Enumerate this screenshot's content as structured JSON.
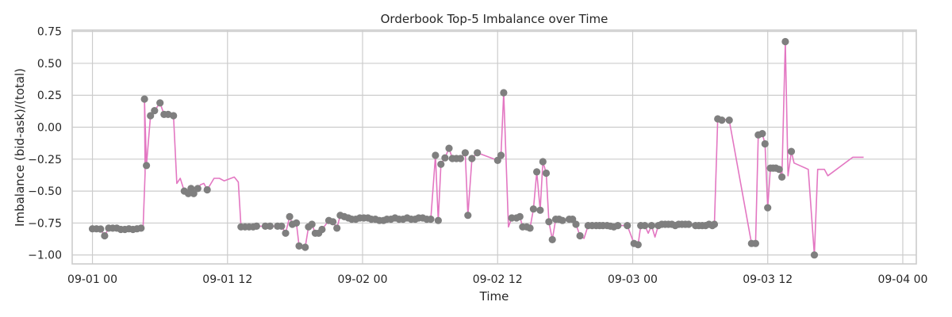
{
  "chart_data": {
    "type": "line",
    "title": "Orderbook Top-5 Imbalance over Time",
    "xlabel": "Time",
    "ylabel": "Imbalance (bid-ask)/(total)",
    "x_unit": "hours since 09-01 00",
    "xlim": [
      -3,
      122
    ],
    "ylim": [
      -1.07,
      0.76
    ],
    "x_ticks": [
      {
        "value": 0,
        "label": "09-01 00"
      },
      {
        "value": 20,
        "label": "09-01 12"
      },
      {
        "value": 40,
        "label": "09-02 00"
      },
      {
        "value": 60,
        "label": "09-02 12"
      },
      {
        "value": 80,
        "label": "09-03 00"
      },
      {
        "value": 100,
        "label": "09-03 12"
      },
      {
        "value": 120,
        "label": "09-04 00"
      }
    ],
    "y_ticks": [
      {
        "value": 0.75,
        "label": "0.75"
      },
      {
        "value": 0.5,
        "label": "0.50"
      },
      {
        "value": 0.25,
        "label": "0.25"
      },
      {
        "value": 0.0,
        "label": "0.00"
      },
      {
        "value": -0.25,
        "label": "−0.25"
      },
      {
        "value": -0.5,
        "label": "−0.50"
      },
      {
        "value": -0.75,
        "label": "−0.75"
      },
      {
        "value": -1.0,
        "label": "−1.00"
      }
    ],
    "grid": true,
    "colors": {
      "line": "#e377c2",
      "marker": "#7f7f7f",
      "grid": "#cccccc",
      "text": "#262626"
    },
    "series": [
      {
        "name": "imbalance",
        "points": [
          [
            0.0,
            -0.795,
            1
          ],
          [
            0.6,
            -0.795,
            1
          ],
          [
            1.2,
            -0.797,
            1
          ],
          [
            1.8,
            -0.85,
            1
          ],
          [
            2.4,
            -0.79,
            1
          ],
          [
            3.0,
            -0.79,
            1
          ],
          [
            3.6,
            -0.79,
            1
          ],
          [
            4.2,
            -0.8,
            1
          ],
          [
            4.8,
            -0.8,
            1
          ],
          [
            5.4,
            -0.795,
            1
          ],
          [
            6.0,
            -0.8,
            1
          ],
          [
            6.6,
            -0.795,
            1
          ],
          [
            7.2,
            -0.79,
            1
          ],
          [
            7.5,
            -0.78,
            0
          ],
          [
            7.8,
            -0.36,
            0
          ],
          [
            7.7,
            0.22,
            1
          ],
          [
            8.0,
            -0.3,
            1
          ],
          [
            8.6,
            0.09,
            1
          ],
          [
            9.2,
            0.13,
            1
          ],
          [
            10.0,
            0.19,
            1
          ],
          [
            10.6,
            0.1,
            1
          ],
          [
            11.2,
            0.1,
            1
          ],
          [
            12.0,
            0.09,
            1
          ],
          [
            12.5,
            -0.44,
            0
          ],
          [
            13.0,
            -0.4,
            0
          ],
          [
            13.6,
            -0.5,
            1
          ],
          [
            14.2,
            -0.52,
            1
          ],
          [
            14.6,
            -0.48,
            1
          ],
          [
            15.0,
            -0.52,
            1
          ],
          [
            15.6,
            -0.48,
            1
          ],
          [
            16.0,
            -0.45,
            0
          ],
          [
            16.5,
            -0.44,
            0
          ],
          [
            17.0,
            -0.49,
            1
          ],
          [
            18.0,
            -0.4,
            0
          ],
          [
            18.8,
            -0.4,
            0
          ],
          [
            19.5,
            -0.42,
            0
          ],
          [
            21.0,
            -0.39,
            0
          ],
          [
            21.6,
            -0.43,
            0
          ],
          [
            22.0,
            -0.78,
            1
          ],
          [
            22.6,
            -0.78,
            1
          ],
          [
            23.2,
            -0.78,
            1
          ],
          [
            23.8,
            -0.78,
            1
          ],
          [
            24.3,
            -0.775,
            1
          ],
          [
            25.0,
            -0.775,
            0
          ],
          [
            25.6,
            -0.775,
            1
          ],
          [
            26.3,
            -0.775,
            1
          ],
          [
            26.9,
            -0.775,
            0
          ],
          [
            27.4,
            -0.775,
            1
          ],
          [
            28.0,
            -0.775,
            1
          ],
          [
            28.6,
            -0.83,
            1
          ],
          [
            29.2,
            -0.7,
            1
          ],
          [
            29.6,
            -0.76,
            1
          ],
          [
            30.2,
            -0.75,
            1
          ],
          [
            30.6,
            -0.93,
            1
          ],
          [
            31.5,
            -0.94,
            1
          ],
          [
            32.0,
            -0.78,
            1
          ],
          [
            32.5,
            -0.76,
            1
          ],
          [
            33.0,
            -0.83,
            1
          ],
          [
            33.5,
            -0.83,
            1
          ],
          [
            34.0,
            -0.8,
            1
          ],
          [
            35.0,
            -0.73,
            1
          ],
          [
            35.6,
            -0.74,
            1
          ],
          [
            36.2,
            -0.79,
            1
          ],
          [
            36.7,
            -0.69,
            1
          ],
          [
            37.3,
            -0.7,
            1
          ],
          [
            37.9,
            -0.71,
            1
          ],
          [
            38.4,
            -0.72,
            1
          ],
          [
            39.0,
            -0.72,
            1
          ],
          [
            39.6,
            -0.71,
            1
          ],
          [
            40.2,
            -0.71,
            1
          ],
          [
            40.8,
            -0.71,
            1
          ],
          [
            41.3,
            -0.72,
            1
          ],
          [
            41.9,
            -0.72,
            1
          ],
          [
            42.5,
            -0.73,
            1
          ],
          [
            43.1,
            -0.73,
            1
          ],
          [
            43.6,
            -0.72,
            1
          ],
          [
            44.2,
            -0.72,
            1
          ],
          [
            44.8,
            -0.71,
            1
          ],
          [
            45.4,
            -0.72,
            1
          ],
          [
            46.0,
            -0.72,
            1
          ],
          [
            46.6,
            -0.71,
            1
          ],
          [
            47.2,
            -0.72,
            1
          ],
          [
            47.8,
            -0.72,
            1
          ],
          [
            48.3,
            -0.71,
            1
          ],
          [
            48.9,
            -0.71,
            1
          ],
          [
            49.5,
            -0.72,
            1
          ],
          [
            50.1,
            -0.72,
            1
          ],
          [
            50.8,
            -0.22,
            1
          ],
          [
            51.2,
            -0.73,
            1
          ],
          [
            51.6,
            -0.29,
            1
          ],
          [
            52.2,
            -0.24,
            1
          ],
          [
            52.8,
            -0.165,
            1
          ],
          [
            53.3,
            -0.245,
            1
          ],
          [
            53.9,
            -0.245,
            1
          ],
          [
            54.5,
            -0.245,
            1
          ],
          [
            55.2,
            -0.2,
            1
          ],
          [
            55.6,
            -0.69,
            1
          ],
          [
            56.2,
            -0.245,
            1
          ],
          [
            57.0,
            -0.2,
            1
          ],
          [
            60.0,
            -0.26,
            1
          ],
          [
            60.5,
            -0.22,
            1
          ],
          [
            60.9,
            0.27,
            1
          ],
          [
            61.6,
            -0.78,
            0
          ],
          [
            62.1,
            -0.71,
            1
          ],
          [
            62.8,
            -0.71,
            1
          ],
          [
            63.3,
            -0.7,
            1
          ],
          [
            63.7,
            -0.78,
            1
          ],
          [
            64.3,
            -0.78,
            1
          ],
          [
            64.8,
            -0.79,
            1
          ],
          [
            65.3,
            -0.64,
            1
          ],
          [
            65.8,
            -0.35,
            1
          ],
          [
            66.3,
            -0.65,
            1
          ],
          [
            66.7,
            -0.27,
            1
          ],
          [
            67.2,
            -0.36,
            1
          ],
          [
            67.6,
            -0.74,
            1
          ],
          [
            68.1,
            -0.88,
            1
          ],
          [
            68.6,
            -0.72,
            1
          ],
          [
            69.1,
            -0.72,
            1
          ],
          [
            69.6,
            -0.73,
            1
          ],
          [
            70.2,
            -0.73,
            0
          ],
          [
            70.6,
            -0.72,
            1
          ],
          [
            71.1,
            -0.72,
            1
          ],
          [
            71.6,
            -0.76,
            1
          ],
          [
            72.2,
            -0.85,
            1
          ],
          [
            72.8,
            -0.87,
            0
          ],
          [
            73.4,
            -0.77,
            1
          ],
          [
            74.0,
            -0.77,
            1
          ],
          [
            74.6,
            -0.77,
            1
          ],
          [
            75.1,
            -0.77,
            1
          ],
          [
            75.6,
            -0.77,
            1
          ],
          [
            76.2,
            -0.77,
            1
          ],
          [
            76.7,
            -0.775,
            1
          ],
          [
            77.2,
            -0.78,
            1
          ],
          [
            77.8,
            -0.77,
            1
          ],
          [
            78.3,
            -0.77,
            0
          ],
          [
            79.2,
            -0.77,
            1
          ],
          [
            80.2,
            -0.91,
            1
          ],
          [
            80.8,
            -0.92,
            1
          ],
          [
            81.2,
            -0.77,
            1
          ],
          [
            81.8,
            -0.77,
            1
          ],
          [
            82.3,
            -0.83,
            0
          ],
          [
            82.8,
            -0.77,
            1
          ],
          [
            83.3,
            -0.86,
            0
          ],
          [
            83.8,
            -0.77,
            1
          ],
          [
            84.3,
            -0.76,
            1
          ],
          [
            84.8,
            -0.76,
            1
          ],
          [
            85.3,
            -0.76,
            1
          ],
          [
            85.8,
            -0.76,
            1
          ],
          [
            86.3,
            -0.77,
            1
          ],
          [
            86.8,
            -0.76,
            1
          ],
          [
            87.3,
            -0.76,
            1
          ],
          [
            87.8,
            -0.76,
            1
          ],
          [
            88.3,
            -0.76,
            1
          ],
          [
            88.8,
            -0.76,
            0
          ],
          [
            89.3,
            -0.77,
            1
          ],
          [
            89.8,
            -0.77,
            1
          ],
          [
            90.3,
            -0.77,
            1
          ],
          [
            90.8,
            -0.77,
            1
          ],
          [
            91.3,
            -0.76,
            1
          ],
          [
            91.8,
            -0.77,
            1
          ],
          [
            92.1,
            -0.76,
            1
          ],
          [
            92.6,
            0.065,
            1
          ],
          [
            93.2,
            0.055,
            1
          ],
          [
            93.8,
            0.06,
            0
          ],
          [
            94.3,
            0.055,
            1
          ],
          [
            97.6,
            -0.91,
            1
          ],
          [
            98.2,
            -0.91,
            1
          ],
          [
            98.6,
            -0.06,
            1
          ],
          [
            99.2,
            -0.05,
            1
          ],
          [
            99.6,
            -0.13,
            1
          ],
          [
            100.0,
            -0.63,
            1
          ],
          [
            100.4,
            -0.32,
            1
          ],
          [
            100.8,
            -0.32,
            1
          ],
          [
            101.2,
            -0.32,
            1
          ],
          [
            101.7,
            -0.33,
            1
          ],
          [
            102.1,
            -0.39,
            1
          ],
          [
            102.6,
            0.67,
            1
          ],
          [
            103.0,
            -0.38,
            0
          ],
          [
            103.5,
            -0.19,
            1
          ],
          [
            103.9,
            -0.28,
            0
          ],
          [
            106.0,
            -0.33,
            0
          ],
          [
            106.9,
            -1.0,
            1
          ],
          [
            107.4,
            -0.33,
            0
          ],
          [
            108.4,
            -0.33,
            0
          ],
          [
            108.9,
            -0.38,
            0
          ],
          [
            112.6,
            -0.235,
            0
          ],
          [
            114.2,
            -0.235,
            0
          ]
        ]
      }
    ]
  }
}
